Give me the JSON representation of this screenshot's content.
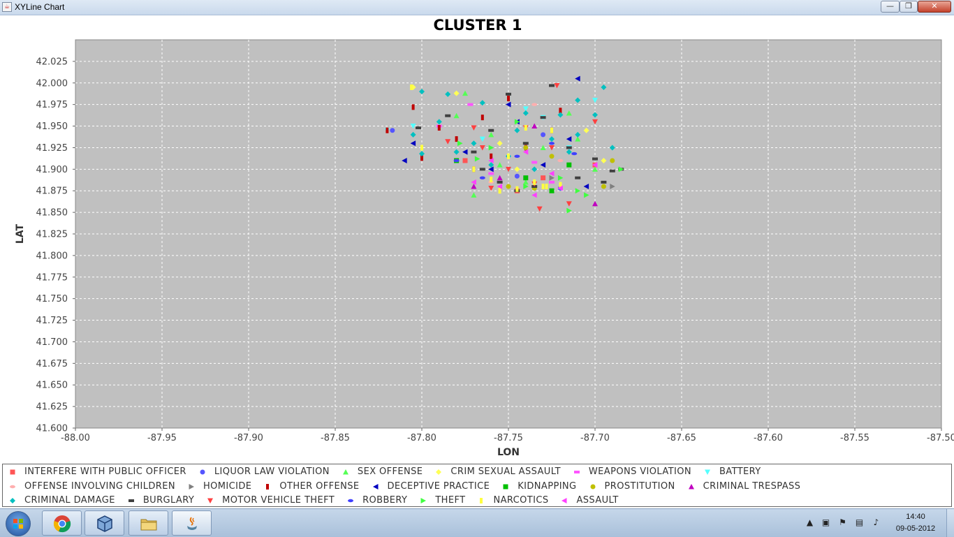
{
  "window": {
    "title": "XYLine Chart",
    "minimize_glyph": "—",
    "maximize_glyph": "❐",
    "close_glyph": "✕"
  },
  "chart_data": {
    "type": "scatter",
    "title": "CLUSTER 1",
    "xlabel": "LON",
    "ylabel": "LAT",
    "xlim": [
      -88.0,
      -87.5
    ],
    "ylim": [
      41.6,
      42.05
    ],
    "x_ticks": [
      "-88.00",
      "-87.95",
      "-87.90",
      "-87.85",
      "-87.80",
      "-87.75",
      "-87.70",
      "-87.65",
      "-87.60",
      "-87.55",
      "-87.50"
    ],
    "y_ticks": [
      "41.600",
      "41.625",
      "41.650",
      "41.675",
      "41.700",
      "41.725",
      "41.750",
      "41.775",
      "41.800",
      "41.825",
      "41.850",
      "41.875",
      "41.900",
      "41.925",
      "41.950",
      "41.975",
      "42.000",
      "42.025"
    ],
    "grid": true,
    "legend_position": "bottom",
    "series": [
      {
        "name": "INTERFERE WITH PUBLIC OFFICER",
        "shape": "square",
        "color": "#ff5555"
      },
      {
        "name": "LIQUOR LAW VIOLATION",
        "shape": "circle",
        "color": "#5555ff"
      },
      {
        "name": "SEX OFFENSE",
        "shape": "triangle-up",
        "color": "#55ff55"
      },
      {
        "name": "CRIM SEXUAL ASSAULT",
        "shape": "diamond",
        "color": "#ffff55"
      },
      {
        "name": "WEAPONS VIOLATION",
        "shape": "hrect",
        "color": "#ff55ff"
      },
      {
        "name": "BATTERY",
        "shape": "triangle-down",
        "color": "#55ffff"
      },
      {
        "name": "OFFENSE INVOLVING CHILDREN",
        "shape": "ellipse",
        "color": "#ffafaf"
      },
      {
        "name": "HOMICIDE",
        "shape": "triangle-right",
        "color": "#808080"
      },
      {
        "name": "OTHER OFFENSE",
        "shape": "vrect",
        "color": "#c00000"
      },
      {
        "name": "DECEPTIVE PRACTICE",
        "shape": "triangle-left",
        "color": "#0000c0"
      },
      {
        "name": "KIDNAPPING",
        "shape": "square",
        "color": "#00c000"
      },
      {
        "name": "PROSTITUTION",
        "shape": "circle",
        "color": "#c0c000"
      },
      {
        "name": "CRIMINAL TRESPASS",
        "shape": "triangle-up",
        "color": "#c000c0"
      },
      {
        "name": "CRIMINAL DAMAGE",
        "shape": "diamond",
        "color": "#00c0c0"
      },
      {
        "name": "BURGLARY",
        "shape": "hrect",
        "color": "#404040"
      },
      {
        "name": "MOTOR VEHICLE THEFT",
        "shape": "triangle-down",
        "color": "#ff4040"
      },
      {
        "name": "ROBBERY",
        "shape": "ellipse",
        "color": "#4040ff"
      },
      {
        "name": "THEFT",
        "shape": "triangle-right",
        "color": "#40ff40"
      },
      {
        "name": "NARCOTICS",
        "shape": "vrect",
        "color": "#ffff40"
      },
      {
        "name": "ASSAULT",
        "shape": "triangle-left",
        "color": "#ff40ff"
      }
    ],
    "points": [
      [
        0,
        -87.775,
        41.91
      ],
      [
        0,
        -87.73,
        41.89
      ],
      [
        0,
        -87.745,
        41.875
      ],
      [
        0,
        -87.7,
        41.905
      ],
      [
        1,
        -87.817,
        41.945
      ],
      [
        1,
        -87.745,
        41.892
      ],
      [
        1,
        -87.73,
        41.94
      ],
      [
        1,
        -87.72,
        41.878
      ],
      [
        2,
        -87.78,
        41.962
      ],
      [
        2,
        -87.775,
        41.988
      ],
      [
        2,
        -87.755,
        41.905
      ],
      [
        2,
        -87.73,
        41.925
      ],
      [
        2,
        -87.715,
        41.965
      ],
      [
        2,
        -87.77,
        41.87
      ],
      [
        2,
        -87.71,
        41.935
      ],
      [
        2,
        -87.7,
        41.9
      ],
      [
        2,
        -87.76,
        41.94
      ],
      [
        2,
        -87.74,
        41.885
      ],
      [
        3,
        -87.78,
        41.988
      ],
      [
        3,
        -87.805,
        41.995
      ],
      [
        3,
        -87.735,
        41.88
      ],
      [
        3,
        -87.755,
        41.93
      ],
      [
        3,
        -87.705,
        41.945
      ],
      [
        3,
        -87.745,
        41.9
      ],
      [
        3,
        -87.695,
        41.91
      ],
      [
        4,
        -87.772,
        41.975
      ],
      [
        4,
        -87.76,
        41.895
      ],
      [
        4,
        -87.735,
        41.908
      ],
      [
        4,
        -87.725,
        41.885
      ],
      [
        4,
        -87.79,
        41.95
      ],
      [
        5,
        -87.805,
        41.95
      ],
      [
        5,
        -87.74,
        41.97
      ],
      [
        5,
        -87.715,
        41.925
      ],
      [
        5,
        -87.765,
        41.935
      ],
      [
        5,
        -87.75,
        41.9
      ],
      [
        5,
        -87.82,
        41.945
      ],
      [
        5,
        -87.73,
        41.96
      ],
      [
        5,
        -87.7,
        41.98
      ],
      [
        6,
        -87.735,
        41.975
      ],
      [
        6,
        -87.76,
        41.885
      ],
      [
        6,
        -87.72,
        41.91
      ],
      [
        7,
        -87.69,
        41.88
      ],
      [
        7,
        -87.725,
        41.89
      ],
      [
        8,
        -87.82,
        41.945
      ],
      [
        8,
        -87.805,
        41.972
      ],
      [
        8,
        -87.79,
        41.948
      ],
      [
        8,
        -87.78,
        41.935
      ],
      [
        8,
        -87.75,
        41.982
      ],
      [
        8,
        -87.765,
        41.96
      ],
      [
        8,
        -87.74,
        41.925
      ],
      [
        8,
        -87.77,
        41.9
      ],
      [
        8,
        -87.8,
        41.913
      ],
      [
        8,
        -87.725,
        41.945
      ],
      [
        8,
        -87.72,
        41.968
      ],
      [
        8,
        -87.76,
        41.915
      ],
      [
        9,
        -87.71,
        42.005
      ],
      [
        9,
        -87.805,
        41.93
      ],
      [
        9,
        -87.81,
        41.91
      ],
      [
        9,
        -87.75,
        41.975
      ],
      [
        9,
        -87.76,
        41.9
      ],
      [
        9,
        -87.745,
        41.955
      ],
      [
        9,
        -87.715,
        41.935
      ],
      [
        9,
        -87.705,
        41.88
      ],
      [
        9,
        -87.73,
        41.905
      ],
      [
        9,
        -87.775,
        41.92
      ],
      [
        10,
        -87.715,
        41.905
      ],
      [
        10,
        -87.74,
        41.89
      ],
      [
        10,
        -87.78,
        41.91
      ],
      [
        10,
        -87.725,
        41.875
      ],
      [
        11,
        -87.735,
        41.878
      ],
      [
        11,
        -87.725,
        41.915
      ],
      [
        11,
        -87.74,
        41.925
      ],
      [
        11,
        -87.69,
        41.91
      ],
      [
        11,
        -87.695,
        41.88
      ],
      [
        11,
        -87.75,
        41.88
      ],
      [
        12,
        -87.77,
        41.88
      ],
      [
        12,
        -87.735,
        41.95
      ],
      [
        12,
        -87.7,
        41.86
      ],
      [
        12,
        -87.755,
        41.89
      ],
      [
        13,
        -87.8,
        41.99
      ],
      [
        13,
        -87.785,
        41.987
      ],
      [
        13,
        -87.765,
        41.977
      ],
      [
        13,
        -87.74,
        41.965
      ],
      [
        13,
        -87.72,
        41.963
      ],
      [
        13,
        -87.7,
        41.963
      ],
      [
        13,
        -87.71,
        41.98
      ],
      [
        13,
        -87.695,
        41.995
      ],
      [
        13,
        -87.79,
        41.955
      ],
      [
        13,
        -87.805,
        41.94
      ],
      [
        13,
        -87.77,
        41.93
      ],
      [
        13,
        -87.75,
        41.915
      ],
      [
        13,
        -87.735,
        41.9
      ],
      [
        13,
        -87.715,
        41.92
      ],
      [
        13,
        -87.69,
        41.925
      ],
      [
        13,
        -87.76,
        41.905
      ],
      [
        13,
        -87.8,
        41.918
      ],
      [
        13,
        -87.745,
        41.945
      ],
      [
        13,
        -87.725,
        41.935
      ],
      [
        13,
        -87.78,
        41.92
      ],
      [
        13,
        -87.71,
        41.94
      ],
      [
        14,
        -87.725,
        41.997
      ],
      [
        14,
        -87.75,
        41.987
      ],
      [
        14,
        -87.785,
        41.962
      ],
      [
        14,
        -87.802,
        41.948
      ],
      [
        14,
        -87.76,
        41.945
      ],
      [
        14,
        -87.73,
        41.96
      ],
      [
        14,
        -87.74,
        41.93
      ],
      [
        14,
        -87.715,
        41.925
      ],
      [
        14,
        -87.7,
        41.912
      ],
      [
        14,
        -87.69,
        41.898
      ],
      [
        14,
        -87.685,
        41.9
      ],
      [
        14,
        -87.695,
        41.885
      ],
      [
        14,
        -87.765,
        41.9
      ],
      [
        14,
        -87.755,
        41.885
      ],
      [
        14,
        -87.745,
        41.875
      ],
      [
        14,
        -87.735,
        41.88
      ],
      [
        14,
        -87.77,
        41.92
      ],
      [
        14,
        -87.71,
        41.89
      ],
      [
        15,
        -87.722,
        41.997
      ],
      [
        15,
        -87.7,
        41.955
      ],
      [
        15,
        -87.74,
        41.948
      ],
      [
        15,
        -87.77,
        41.948
      ],
      [
        15,
        -87.75,
        41.9
      ],
      [
        15,
        -87.725,
        41.925
      ],
      [
        15,
        -87.765,
        41.925
      ],
      [
        15,
        -87.735,
        41.883
      ],
      [
        15,
        -87.715,
        41.86
      ],
      [
        15,
        -87.732,
        41.854
      ],
      [
        15,
        -87.76,
        41.878
      ],
      [
        15,
        -87.785,
        41.932
      ],
      [
        16,
        -87.725,
        41.93
      ],
      [
        16,
        -87.765,
        41.89
      ],
      [
        16,
        -87.745,
        41.915
      ],
      [
        16,
        -87.78,
        41.91
      ],
      [
        16,
        -87.712,
        41.918
      ],
      [
        17,
        -87.705,
        41.87
      ],
      [
        17,
        -87.715,
        41.852
      ],
      [
        17,
        -87.685,
        41.9
      ],
      [
        17,
        -87.72,
        41.89
      ],
      [
        17,
        -87.76,
        41.925
      ],
      [
        17,
        -87.74,
        41.88
      ],
      [
        17,
        -87.778,
        41.93
      ],
      [
        17,
        -87.71,
        41.875
      ],
      [
        17,
        -87.745,
        41.955
      ],
      [
        17,
        -87.768,
        41.912
      ],
      [
        18,
        -87.806,
        41.995
      ],
      [
        18,
        -87.74,
        41.948
      ],
      [
        18,
        -87.73,
        41.88
      ],
      [
        18,
        -87.735,
        41.885
      ],
      [
        18,
        -87.728,
        41.88
      ],
      [
        18,
        -87.745,
        41.877
      ],
      [
        18,
        -87.755,
        41.875
      ],
      [
        18,
        -87.77,
        41.9
      ],
      [
        18,
        -87.75,
        41.915
      ],
      [
        18,
        -87.725,
        41.945
      ],
      [
        18,
        -87.8,
        41.925
      ],
      [
        18,
        -87.76,
        41.888
      ],
      [
        18,
        -87.72,
        41.882
      ],
      [
        19,
        -87.7,
        41.905
      ],
      [
        19,
        -87.72,
        41.878
      ],
      [
        19,
        -87.755,
        41.88
      ],
      [
        19,
        -87.74,
        41.92
      ],
      [
        19,
        -87.735,
        41.87
      ],
      [
        19,
        -87.77,
        41.885
      ],
      [
        19,
        -87.725,
        41.895
      ],
      [
        19,
        -87.76,
        41.91
      ]
    ]
  },
  "taskbar": {
    "time": "14:40",
    "date": "09-05-2012"
  }
}
